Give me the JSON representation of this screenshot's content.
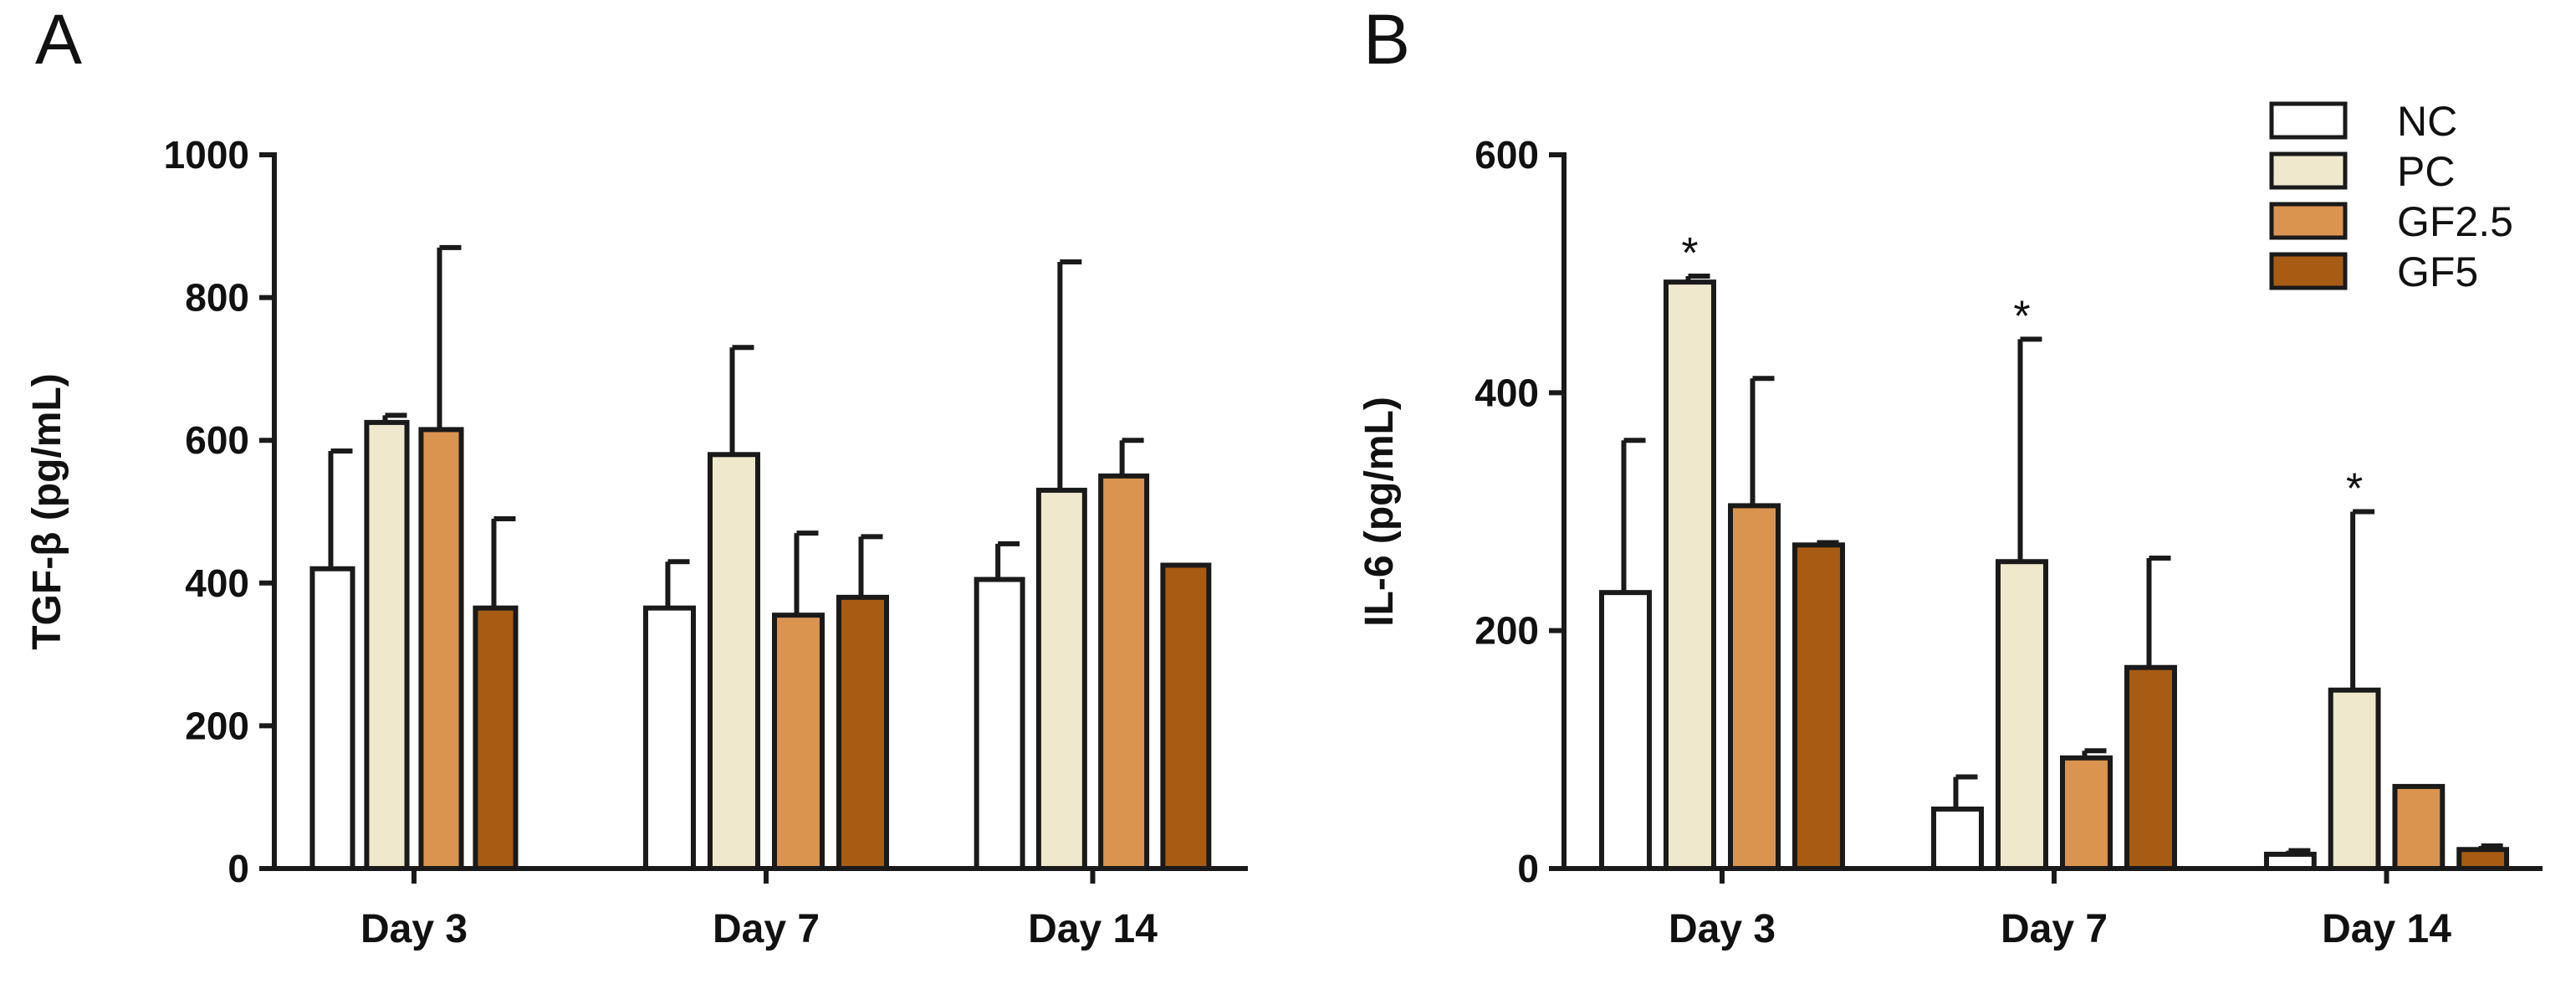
{
  "chart_data": [
    {
      "type": "bar",
      "panel": "A",
      "title": "",
      "xlabel": "",
      "ylabel": "TGF-β (pg/mL)",
      "ylim": [
        0,
        1000
      ],
      "yticks": [
        "0",
        "200",
        "400",
        "600",
        "800",
        "1000"
      ],
      "categories": [
        "Day 3",
        "Day 7",
        "Day 14"
      ],
      "series": [
        {
          "name": "NC",
          "values": [
            420,
            365,
            405
          ],
          "errors": [
            165,
            65,
            50
          ]
        },
        {
          "name": "PC",
          "values": [
            625,
            580,
            530
          ],
          "errors": [
            10,
            150,
            320
          ]
        },
        {
          "name": "GF2.5",
          "values": [
            615,
            355,
            550
          ],
          "errors": [
            255,
            115,
            50
          ]
        },
        {
          "name": "GF5",
          "values": [
            365,
            380,
            425
          ],
          "errors": [
            125,
            85,
            0
          ]
        }
      ],
      "annotations": []
    },
    {
      "type": "bar",
      "panel": "B",
      "title": "",
      "xlabel": "",
      "ylabel": "IL-6 (pg/mL)",
      "ylim": [
        0,
        600
      ],
      "yticks": [
        "0",
        "200",
        "400",
        "600"
      ],
      "categories": [
        "Day 3",
        "Day 7",
        "Day 14"
      ],
      "series": [
        {
          "name": "NC",
          "values": [
            232,
            50,
            12
          ],
          "errors": [
            128,
            27,
            3
          ]
        },
        {
          "name": "PC",
          "values": [
            493,
            258,
            150
          ],
          "errors": [
            5,
            187,
            150
          ]
        },
        {
          "name": "GF2.5",
          "values": [
            305,
            93,
            69
          ],
          "errors": [
            107,
            6,
            0
          ]
        },
        {
          "name": "GF5",
          "values": [
            272,
            169,
            16
          ],
          "errors": [
            2,
            92,
            3
          ]
        }
      ],
      "annotations": [
        {
          "text": "*",
          "category": 0,
          "series": 1
        },
        {
          "text": "*",
          "category": 1,
          "series": 1
        },
        {
          "text": "*",
          "category": 2,
          "series": 1
        }
      ]
    }
  ],
  "legend": {
    "items": [
      {
        "label": "NC",
        "color": "#ffffff"
      },
      {
        "label": "PC",
        "color": "#efe8cc"
      },
      {
        "label": "GF2.5",
        "color": "#db9350"
      },
      {
        "label": "GF5",
        "color": "#a85b12"
      }
    ],
    "position": "top-right"
  },
  "colors": {
    "stroke": "#1a1a1a",
    "NC": "#ffffff",
    "PC": "#efe8cc",
    "GF2.5": "#db9350",
    "GF5": "#a85b12"
  }
}
